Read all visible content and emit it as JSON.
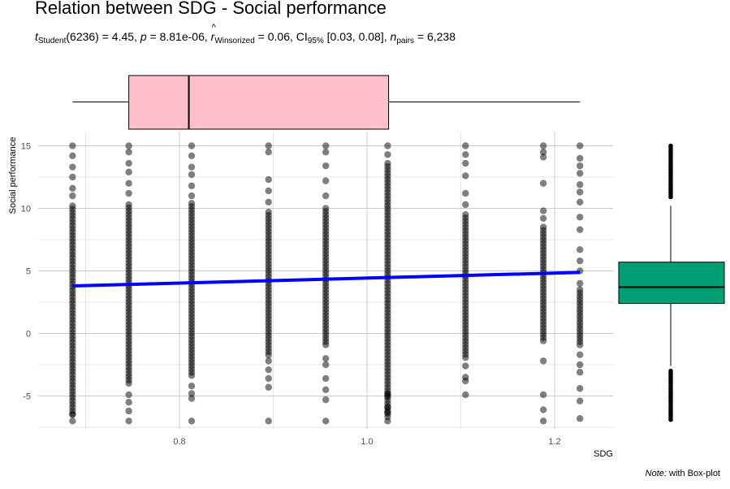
{
  "title": "Relation between SDG - Social performance",
  "subtitle": {
    "t_label": "t",
    "t_sub": "Student",
    "t_value": "(6236) = 4.45,",
    "p_label": "p",
    "p_value": "= 8.81e-06,",
    "r_label": "r",
    "r_sub": "Winsorized",
    "r_value": "= 0.06, CI",
    "ci_sub": "95%",
    "ci_value": "[0.03, 0.08],",
    "n_label": "n",
    "n_sub": "pairs",
    "n_value": "= 6,238"
  },
  "caption": {
    "note_label": "Note:",
    "note_text": "with Box-plot"
  },
  "colors": {
    "points": "#000000",
    "fit_line": "#0000ff",
    "top_box": "#ffc0cb",
    "right_box": "#009e73",
    "grid_major": "#cccccc",
    "grid_minor": "#e6e6e6"
  },
  "chart_data": {
    "type": "scatter",
    "xlabel": "SDG",
    "ylabel": "Social performance",
    "xlim": [
      0.662,
      1.267
    ],
    "ylim": [
      -7.75,
      16.3
    ],
    "x_ticks": [
      0.8,
      1.0,
      1.2
    ],
    "x_tick_labels": [
      "0.8",
      "1.0",
      "1.2"
    ],
    "y_ticks": [
      -5,
      0,
      5,
      10,
      15
    ],
    "y_tick_labels": [
      "-5",
      "0",
      "5",
      "10",
      "15"
    ],
    "grid": true,
    "point_columns": [
      {
        "x": 0.686,
        "dense": [
          -6.6,
          10.2
        ],
        "sparse": [
          -7.0,
          -6.5,
          11.0,
          11.6,
          12.5,
          13.3,
          14.2,
          15.0
        ]
      },
      {
        "x": 0.746,
        "dense": [
          -4.1,
          10.3
        ],
        "sparse": [
          -7.0,
          -6.2,
          -5.5,
          -4.9,
          11.2,
          12.0,
          12.9,
          13.6,
          14.5,
          15.0
        ]
      },
      {
        "x": 0.813,
        "dense": [
          -3.5,
          10.4
        ],
        "sparse": [
          -7.0,
          -5.2,
          -4.8,
          -4.2,
          11.0,
          11.8,
          12.7,
          13.3,
          14.2,
          15.0
        ]
      },
      {
        "x": 0.895,
        "dense": [
          -1.8,
          9.7
        ],
        "sparse": [
          -7.0,
          -4.3,
          -3.6,
          -2.9,
          -2.2,
          10.5,
          11.4,
          12.3,
          14.5,
          15.0
        ]
      },
      {
        "x": 0.956,
        "dense": [
          -1.0,
          10.0
        ],
        "sparse": [
          -7.0,
          -5.3,
          -4.5,
          -3.6,
          -2.5,
          -2.0,
          11.0,
          12.2,
          13.4,
          14.5,
          15.0
        ]
      },
      {
        "x": 1.022,
        "dense": [
          -6.7,
          13.6
        ],
        "sparse": [
          -7.0,
          -6.3,
          -5.9,
          -5.0,
          -4.8,
          14.3,
          15.0
        ]
      },
      {
        "x": 1.105,
        "dense": [
          -2.0,
          9.5
        ],
        "sparse": [
          -4.9,
          -3.8,
          -3.5,
          -2.6,
          10.3,
          11.2,
          12.6,
          13.6,
          14.3,
          15.0
        ]
      },
      {
        "x": 1.188,
        "dense": [
          -0.7,
          8.5
        ],
        "sparse": [
          -7.0,
          -6.1,
          -4.9,
          -2.2,
          9.2,
          9.8,
          12.0,
          14.1,
          14.5,
          15.0
        ]
      },
      {
        "x": 1.227,
        "dense": [
          -1.0,
          3.5
        ],
        "sparse": [
          -6.8,
          -5.4,
          -4.4,
          -3.1,
          -2.5,
          -1.7,
          4.0,
          5.0,
          5.8,
          6.7,
          8.3,
          9.3,
          10.5,
          11.3,
          11.9,
          12.8,
          13.4,
          14.0,
          15.0
        ]
      }
    ],
    "fit_line": {
      "x": [
        0.686,
        1.227
      ],
      "y": [
        3.8,
        4.88
      ]
    },
    "marginal_x_boxplot": {
      "whisker_low": 0.686,
      "q1": 0.746,
      "median": 0.81,
      "q3": 1.023,
      "whisker_high": 1.227
    },
    "marginal_y_boxplot": {
      "whisker_low": -2.6,
      "q1": 2.4,
      "median": 3.7,
      "q3": 5.7,
      "whisker_high": 10.2,
      "outliers_low": [
        -7.0,
        -6.5,
        -6.0,
        -5.5,
        -5.0,
        -4.5,
        -4.0,
        -3.5,
        -3.0
      ],
      "outliers_high": [
        10.8,
        11.5,
        12.0,
        12.5,
        13.0,
        13.5,
        14.0,
        14.5,
        15.0
      ]
    }
  }
}
